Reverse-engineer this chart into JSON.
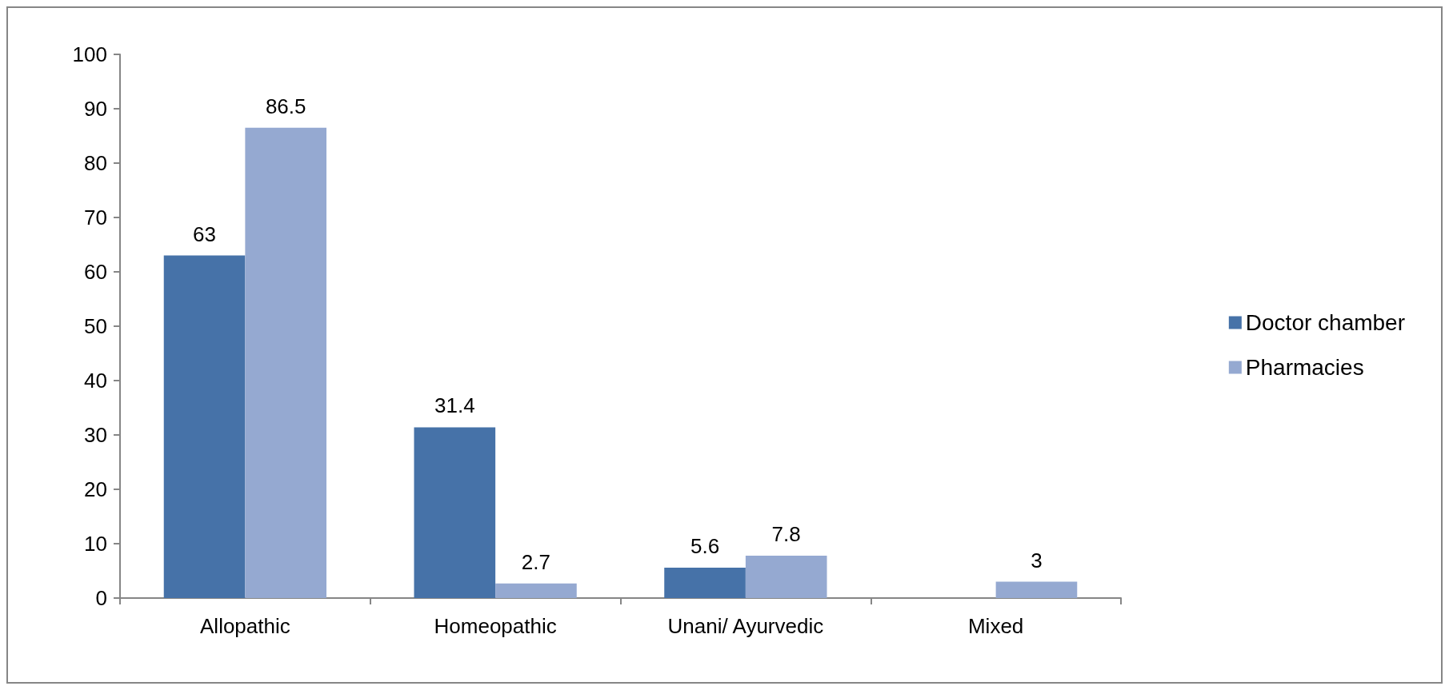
{
  "chart_data": {
    "type": "bar",
    "categories": [
      "Allopathic",
      "Homeopathic",
      "Unani/ Ayurvedic",
      "Mixed"
    ],
    "series": [
      {
        "name": "Doctor chamber",
        "color": "#4672a8",
        "values": [
          63,
          31.4,
          5.6,
          null
        ]
      },
      {
        "name": "Pharmacies",
        "color": "#95a9d1",
        "values": [
          86.5,
          2.7,
          7.8,
          3
        ]
      }
    ],
    "ylim": [
      0,
      100
    ],
    "yticks": [
      0,
      10,
      20,
      30,
      40,
      50,
      60,
      70,
      80,
      90,
      100
    ],
    "grid": false,
    "legend": "right",
    "data_labels": true
  }
}
